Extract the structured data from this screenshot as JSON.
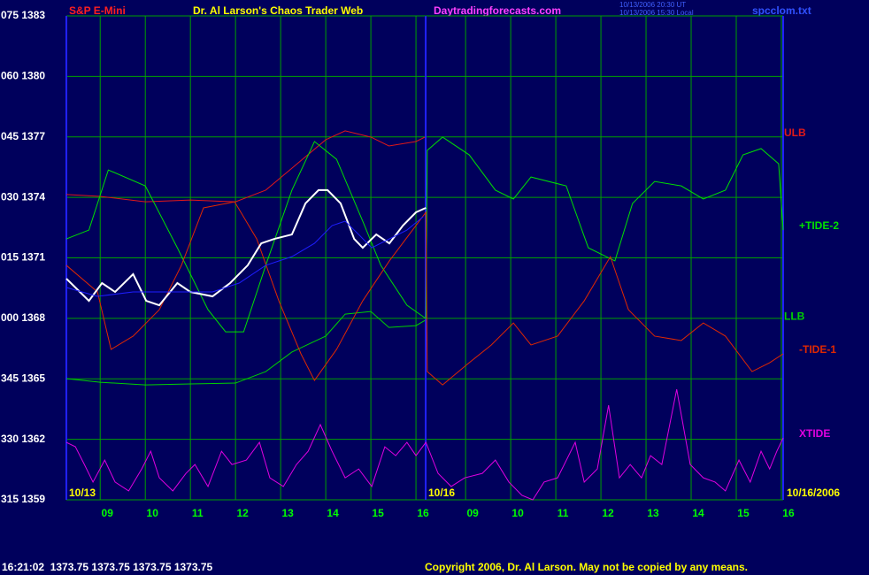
{
  "chart_data": {
    "type": "line",
    "title": "Dr. Al Larson's Chaos Trader Web",
    "symbol": "S&P E-Mini",
    "site": "Daytradingforecasts.com",
    "timestamp_ut": "10/13/2006 20:30 UT",
    "timestamp_local": "10/13/2006 15:30 Local",
    "file": "spcclom.txt",
    "date_labels": [
      "10/13",
      "10/16",
      "10/16/2006"
    ],
    "status": "16:21:02  1373.75 1373.75 1373.75 1373.75",
    "copyright": "Copyright 2006, Dr. Al Larson. May not be copied by any means.",
    "grid": true,
    "xlim": [
      8.25,
      24.14
    ],
    "xticks": [
      {
        "value": 9,
        "label": "09"
      },
      10,
      11,
      12,
      13,
      14,
      15,
      16,
      {
        "value": 17.1,
        "label": "09"
      },
      {
        "value": 18.1,
        "label": "10"
      },
      {
        "value": 19.1,
        "label": "11"
      },
      {
        "value": 20.1,
        "label": "12"
      },
      {
        "value": 21.1,
        "label": "13"
      },
      {
        "value": 22.1,
        "label": "14"
      },
      {
        "value": 23.1,
        "label": "15"
      },
      {
        "value": 24.1,
        "label": "16"
      }
    ],
    "ylim": [
      1359,
      1383
    ],
    "yticks": [
      {
        "value": 1383,
        "label": "075 1383"
      },
      {
        "value": 1380,
        "label": "060 1380"
      },
      {
        "value": 1377,
        "label": "045 1377"
      },
      {
        "value": 1374,
        "label": "030 1374"
      },
      {
        "value": 1371,
        "label": "015 1371"
      },
      {
        "value": 1368,
        "label": "000 1368"
      },
      {
        "value": 1365,
        "label": "345 1365"
      },
      {
        "value": 1362,
        "label": "330 1362"
      },
      {
        "value": 1359,
        "label": "315 1359"
      }
    ],
    "series": [
      {
        "name": "ULB",
        "color": "#e01818",
        "x": [
          8.25,
          9,
          10,
          11,
          12,
          12.67,
          13.25,
          14,
          14.43,
          15,
          15.4,
          16,
          16.2
        ],
        "values": [
          1374.14,
          1374.05,
          1373.78,
          1373.87,
          1373.78,
          1374.36,
          1375.45,
          1376.86,
          1377.3,
          1376.99,
          1376.55,
          1376.77,
          1376.99
        ]
      },
      {
        "name": "LLB",
        "color": "#00d000",
        "x": [
          8.25,
          9,
          10,
          11,
          12,
          12.67,
          13.25,
          14,
          14.43,
          15,
          15.4,
          16,
          16.2
        ],
        "values": [
          1365.01,
          1364.83,
          1364.7,
          1364.75,
          1364.79,
          1365.36,
          1366.33,
          1367.12,
          1368.21,
          1368.34,
          1367.55,
          1367.64,
          1367.9
        ]
      },
      {
        "name": "+TIDE-2",
        "color": "#00e000",
        "x": [
          8.25,
          8.75,
          9.18,
          10,
          10.71,
          11.39,
          11.78,
          12.18,
          12.67,
          13.25,
          13.75,
          14.24,
          14.82,
          15.22,
          15.8,
          16.22,
          16.25,
          16.59,
          17.18,
          17.76,
          18.16,
          18.55,
          19.33,
          19.82,
          20.41,
          20.8,
          21.29,
          21.88,
          22.37,
          22.86,
          23.25,
          23.65,
          24.04,
          24.14
        ],
        "values": [
          1371.94,
          1372.38,
          1375.36,
          1374.57,
          1371.5,
          1368.43,
          1367.33,
          1367.33,
          1370.63,
          1374.36,
          1376.77,
          1375.89,
          1372.82,
          1370.63,
          1368.65,
          1367.99,
          1376.33,
          1376.99,
          1376.11,
          1374.36,
          1373.92,
          1375.01,
          1374.57,
          1371.5,
          1370.85,
          1373.7,
          1374.79,
          1374.57,
          1373.92,
          1374.36,
          1376.11,
          1376.42,
          1375.67,
          1372.38
        ]
      },
      {
        "name": "-TIDE-1",
        "color": "#e02800",
        "x": [
          8.25,
          8.94,
          9.24,
          9.73,
          10.31,
          10.8,
          11.29,
          11.98,
          12.47,
          12.96,
          13.45,
          13.75,
          14.24,
          14.82,
          15.41,
          16.22,
          16.25,
          16.59,
          17.18,
          17.67,
          18.16,
          18.55,
          19.14,
          19.73,
          20.31,
          20.71,
          21.29,
          21.88,
          22.37,
          22.86,
          23.45,
          23.84,
          24.14
        ],
        "values": [
          1370.63,
          1369.31,
          1366.46,
          1367.12,
          1368.43,
          1370.63,
          1373.48,
          1373.78,
          1371.94,
          1368.87,
          1366.24,
          1364.92,
          1366.46,
          1368.87,
          1370.85,
          1373.26,
          1365.36,
          1364.7,
          1365.8,
          1366.68,
          1367.77,
          1366.68,
          1367.12,
          1368.87,
          1371.06,
          1368.43,
          1367.12,
          1366.9,
          1367.77,
          1367.12,
          1365.36,
          1365.8,
          1366.24
        ]
      },
      {
        "name": "XTIDE",
        "color": "#e000e0",
        "x": [
          8.25,
          8.45,
          8.65,
          8.84,
          9.1,
          9.33,
          9.63,
          9.92,
          10.12,
          10.31,
          10.61,
          10.9,
          11.1,
          11.39,
          11.69,
          11.92,
          12.24,
          12.53,
          12.76,
          13.06,
          13.35,
          13.61,
          13.88,
          14.14,
          14.43,
          14.73,
          15.02,
          15.31,
          15.55,
          15.8,
          16,
          16.22,
          16.49,
          16.78,
          17.08,
          17.47,
          17.76,
          18.06,
          18.35,
          18.59,
          18.84,
          19.14,
          19.53,
          19.73,
          20.02,
          20.27,
          20.51,
          20.75,
          21,
          21.2,
          21.45,
          21.78,
          22.08,
          22.37,
          22.63,
          22.86,
          23.16,
          23.41,
          23.65,
          23.84,
          24,
          24.14
        ],
        "values": [
          1361.85,
          1361.63,
          1360.75,
          1359.88,
          1360.97,
          1359.88,
          1359.44,
          1360.53,
          1361.41,
          1360.09,
          1359.44,
          1360.31,
          1360.75,
          1359.66,
          1361.41,
          1360.75,
          1360.97,
          1361.85,
          1360.09,
          1359.66,
          1360.75,
          1361.41,
          1362.73,
          1361.41,
          1360.09,
          1360.53,
          1359.66,
          1361.63,
          1361.19,
          1361.85,
          1361.19,
          1361.85,
          1360.31,
          1359.66,
          1360.09,
          1360.31,
          1360.97,
          1359.88,
          1359.22,
          1359,
          1359.88,
          1360.09,
          1361.85,
          1359.88,
          1360.53,
          1363.69,
          1360.09,
          1360.75,
          1360.09,
          1361.19,
          1360.75,
          1364.48,
          1360.75,
          1360.09,
          1359.88,
          1359.44,
          1360.97,
          1359.88,
          1361.41,
          1360.53,
          1361.41,
          1362.07
        ]
      },
      {
        "color": "#ffffff",
        "x": [
          8.25,
          8.55,
          8.75,
          9.04,
          9.33,
          9.73,
          10.02,
          10.31,
          10.71,
          11,
          11.49,
          11.88,
          12.27,
          12.57,
          12.86,
          13.25,
          13.55,
          13.84,
          14.04,
          14.33,
          14.63,
          14.82,
          15.12,
          15.41,
          15.71,
          16,
          16.22
        ],
        "values": [
          1369.97,
          1369.31,
          1368.87,
          1369.75,
          1369.31,
          1370.19,
          1368.87,
          1368.65,
          1369.75,
          1369.31,
          1369.09,
          1369.75,
          1370.63,
          1371.72,
          1371.94,
          1372.16,
          1373.7,
          1374.36,
          1374.36,
          1373.7,
          1371.94,
          1371.5,
          1372.16,
          1371.72,
          1372.6,
          1373.26,
          1373.48
        ]
      },
      {
        "color": "#1e1eff",
        "x": [
          8.25,
          8.94,
          9.73,
          10.71,
          11.49,
          12.08,
          12.67,
          13.25,
          13.75,
          14.14,
          14.43,
          14.73,
          15.02,
          15.41,
          15.8,
          16.16
        ],
        "values": [
          1369.53,
          1369.09,
          1369.31,
          1369.31,
          1369.31,
          1369.75,
          1370.63,
          1371.06,
          1371.72,
          1372.6,
          1372.82,
          1372.16,
          1371.5,
          1371.94,
          1372.38,
          1373.04
        ]
      }
    ]
  }
}
